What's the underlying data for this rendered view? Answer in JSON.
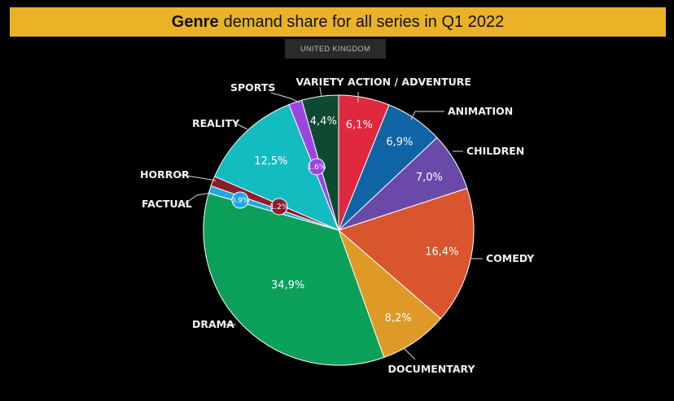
{
  "header": {
    "title_bold": "Genre",
    "title_rest": "demand share for all series in Q1 2022",
    "region": "UNITED KINGDOM"
  },
  "chart_data": {
    "type": "pie",
    "title": "Genre demand share for all series in Q1 2022",
    "subtitle": "UNITED KINGDOM",
    "start": "12 o'clock, clockwise",
    "slices": [
      {
        "category": "ACTION / ADVENTURE",
        "value": 6.1,
        "label": "6,1%",
        "color": "#e0283f"
      },
      {
        "category": "ANIMATION",
        "value": 6.9,
        "label": "6,9%",
        "color": "#0f64a6"
      },
      {
        "category": "CHILDREN",
        "value": 7.0,
        "label": "7,0%",
        "color": "#6a49a8"
      },
      {
        "category": "COMEDY",
        "value": 16.4,
        "label": "16,4%",
        "color": "#d9552d"
      },
      {
        "category": "DOCUMENTARY",
        "value": 8.2,
        "label": "8,2%",
        "color": "#de9927"
      },
      {
        "category": "DRAMA",
        "value": 34.9,
        "label": "34,9%",
        "color": "#0aa05a"
      },
      {
        "category": "FACTUAL",
        "value": 0.9,
        "label": "0.9%",
        "color": "#1fa9e0"
      },
      {
        "category": "HORROR",
        "value": 1.2,
        "label": "1.2%",
        "color": "#8e1d2c"
      },
      {
        "category": "REALITY",
        "value": 12.5,
        "label": "12,5%",
        "color": "#13bcc0"
      },
      {
        "category": "SPORTS",
        "value": 1.6,
        "label": "1.6%",
        "color": "#9b45e0"
      },
      {
        "category": "VARIETY",
        "value": 4.4,
        "label": "4,4%",
        "color": "#0d4a31"
      }
    ]
  }
}
